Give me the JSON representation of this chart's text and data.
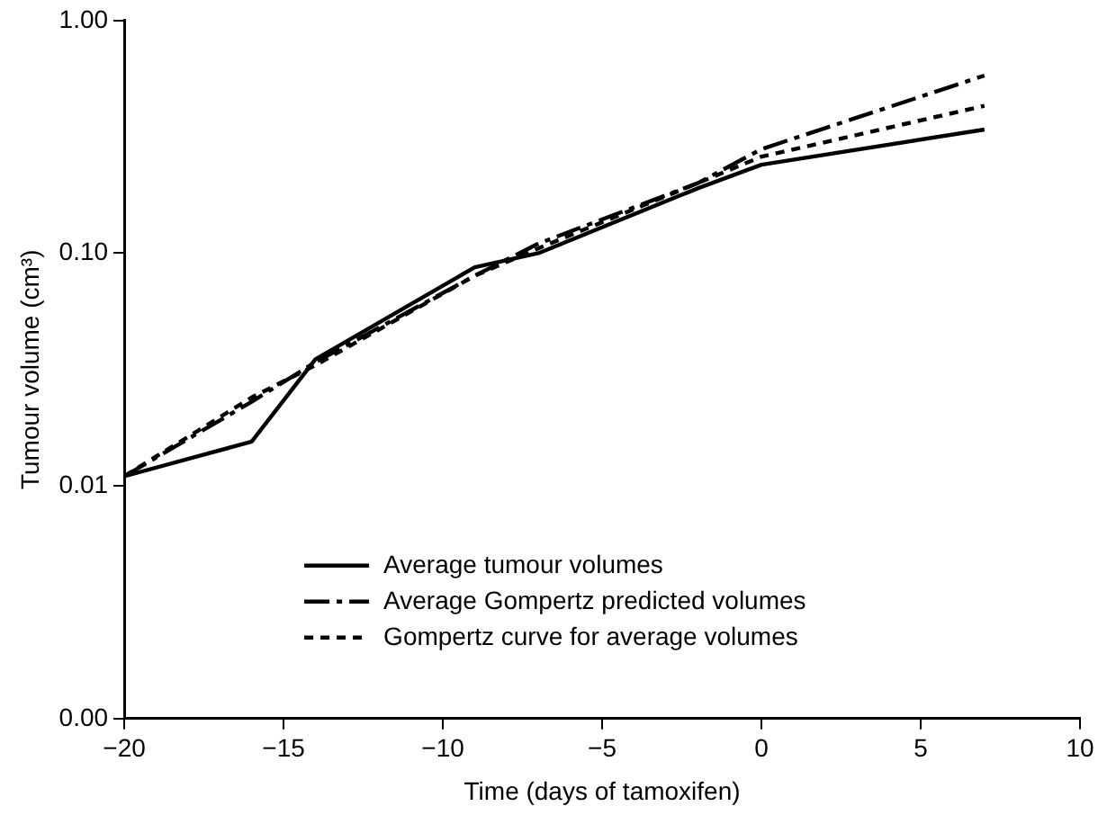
{
  "chart_data": {
    "type": "line",
    "xlabel": "Time (days of tamoxifen)",
    "ylabel": "Tumour volume (cm³)",
    "log": "y",
    "grid": false,
    "legend": "bottom right",
    "marker": "none",
    "xlim": [
      -20,
      10
    ],
    "xticks": [
      {
        "value": -20,
        "label": "−20"
      },
      {
        "value": -15,
        "label": "−15"
      },
      {
        "value": -10,
        "label": "−10"
      },
      {
        "value": -5,
        "label": "−5"
      },
      0,
      5,
      10
    ],
    "ylim": [
      0.001,
      1
    ],
    "yticks": [
      {
        "value": 0.001,
        "label": "0.00"
      },
      {
        "value": 0.01,
        "label": "0.01"
      },
      {
        "value": 0.1,
        "label": "0.10"
      },
      {
        "value": 1,
        "label": "1.00"
      }
    ],
    "x": [
      -20,
      -16,
      -14,
      -9,
      -7,
      -2,
      0,
      7
    ],
    "series": [
      {
        "name": "Average tumour volumes",
        "color": "#000000",
        "line_style": "solid",
        "values": [
          0.011,
          0.0155,
          0.035,
          0.087,
          0.1,
          0.19,
          0.24,
          0.34
        ]
      },
      {
        "name": "Average Gompertz predicted volumes",
        "color": "#000000",
        "line_style": "dashed",
        "values": [
          0.011,
          0.023,
          0.034,
          0.08,
          0.11,
          0.2,
          0.28,
          0.58
        ]
      },
      {
        "name": "Gompertz curve for average volumes",
        "color": "#000000",
        "line_style": "dotted",
        "values": [
          0.011,
          0.024,
          0.033,
          0.08,
          0.105,
          0.2,
          0.26,
          0.43
        ]
      }
    ]
  }
}
